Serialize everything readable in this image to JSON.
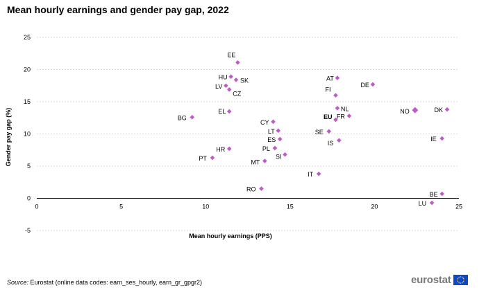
{
  "chart_data": {
    "type": "scatter",
    "title": "Mean hourly earnings and gender pay gap, 2022",
    "xlabel": "Mean hourly earnings (PPS)",
    "ylabel": "Gender pay gap (%)",
    "xlim": [
      0,
      25
    ],
    "ylim": [
      -5,
      25
    ],
    "xticks": [
      0,
      5,
      10,
      15,
      20,
      25
    ],
    "yticks": [
      -5,
      0,
      5,
      10,
      15,
      20,
      25
    ],
    "grid": "horizontal",
    "marker_color": "#bf5bc5",
    "points": [
      {
        "label": "EE",
        "x": 11.9,
        "y": 21.1
      },
      {
        "label": "HU",
        "x": 11.5,
        "y": 18.9
      },
      {
        "label": "SK",
        "x": 11.8,
        "y": 18.4
      },
      {
        "label": "LV",
        "x": 11.2,
        "y": 17.5
      },
      {
        "label": "CZ",
        "x": 11.4,
        "y": 16.9
      },
      {
        "label": "AT",
        "x": 17.8,
        "y": 18.7
      },
      {
        "label": "DE",
        "x": 19.9,
        "y": 17.7
      },
      {
        "label": "FI",
        "x": 17.7,
        "y": 16.0
      },
      {
        "label": "NL",
        "x": 17.8,
        "y": 14.0
      },
      {
        "label": "NO",
        "x": 22.4,
        "y": 13.7
      },
      {
        "label": "DK",
        "x": 24.3,
        "y": 13.8
      },
      {
        "label": "EL",
        "x": 11.4,
        "y": 13.5
      },
      {
        "label": "BG",
        "x": 9.2,
        "y": 12.6
      },
      {
        "label": "EU",
        "x": 17.7,
        "y": 12.2
      },
      {
        "label": "FR",
        "x": 18.5,
        "y": 12.8
      },
      {
        "label": "CY",
        "x": 14.0,
        "y": 11.9
      },
      {
        "label": "LT",
        "x": 14.3,
        "y": 10.5
      },
      {
        "label": "SE",
        "x": 17.3,
        "y": 10.4
      },
      {
        "label": "ES",
        "x": 14.4,
        "y": 9.2
      },
      {
        "label": "IS",
        "x": 17.9,
        "y": 9.0
      },
      {
        "label": "IE",
        "x": 24.0,
        "y": 9.3
      },
      {
        "label": "HR",
        "x": 11.4,
        "y": 7.7
      },
      {
        "label": "PL",
        "x": 14.1,
        "y": 7.8
      },
      {
        "label": "SI",
        "x": 14.7,
        "y": 6.8
      },
      {
        "label": "PT",
        "x": 10.4,
        "y": 6.3
      },
      {
        "label": "MT",
        "x": 13.5,
        "y": 5.8
      },
      {
        "label": "IT",
        "x": 16.7,
        "y": 3.8
      },
      {
        "label": "RO",
        "x": 13.3,
        "y": 1.5
      },
      {
        "label": "BE",
        "x": 24.0,
        "y": 0.7
      },
      {
        "label": "LU",
        "x": 23.4,
        "y": -0.7
      }
    ],
    "highlight_bold": [
      "EU"
    ]
  },
  "footer": {
    "source_label": "Source:",
    "source_text": "Eurostat (online data codes: earn_ses_hourly, earn_gr_gpgr2)",
    "brand": "eurostat"
  },
  "icons": {
    "brand_flag": "eu-flag-icon",
    "flag_color": "#0e47cb",
    "star_color": "#ffd617"
  }
}
